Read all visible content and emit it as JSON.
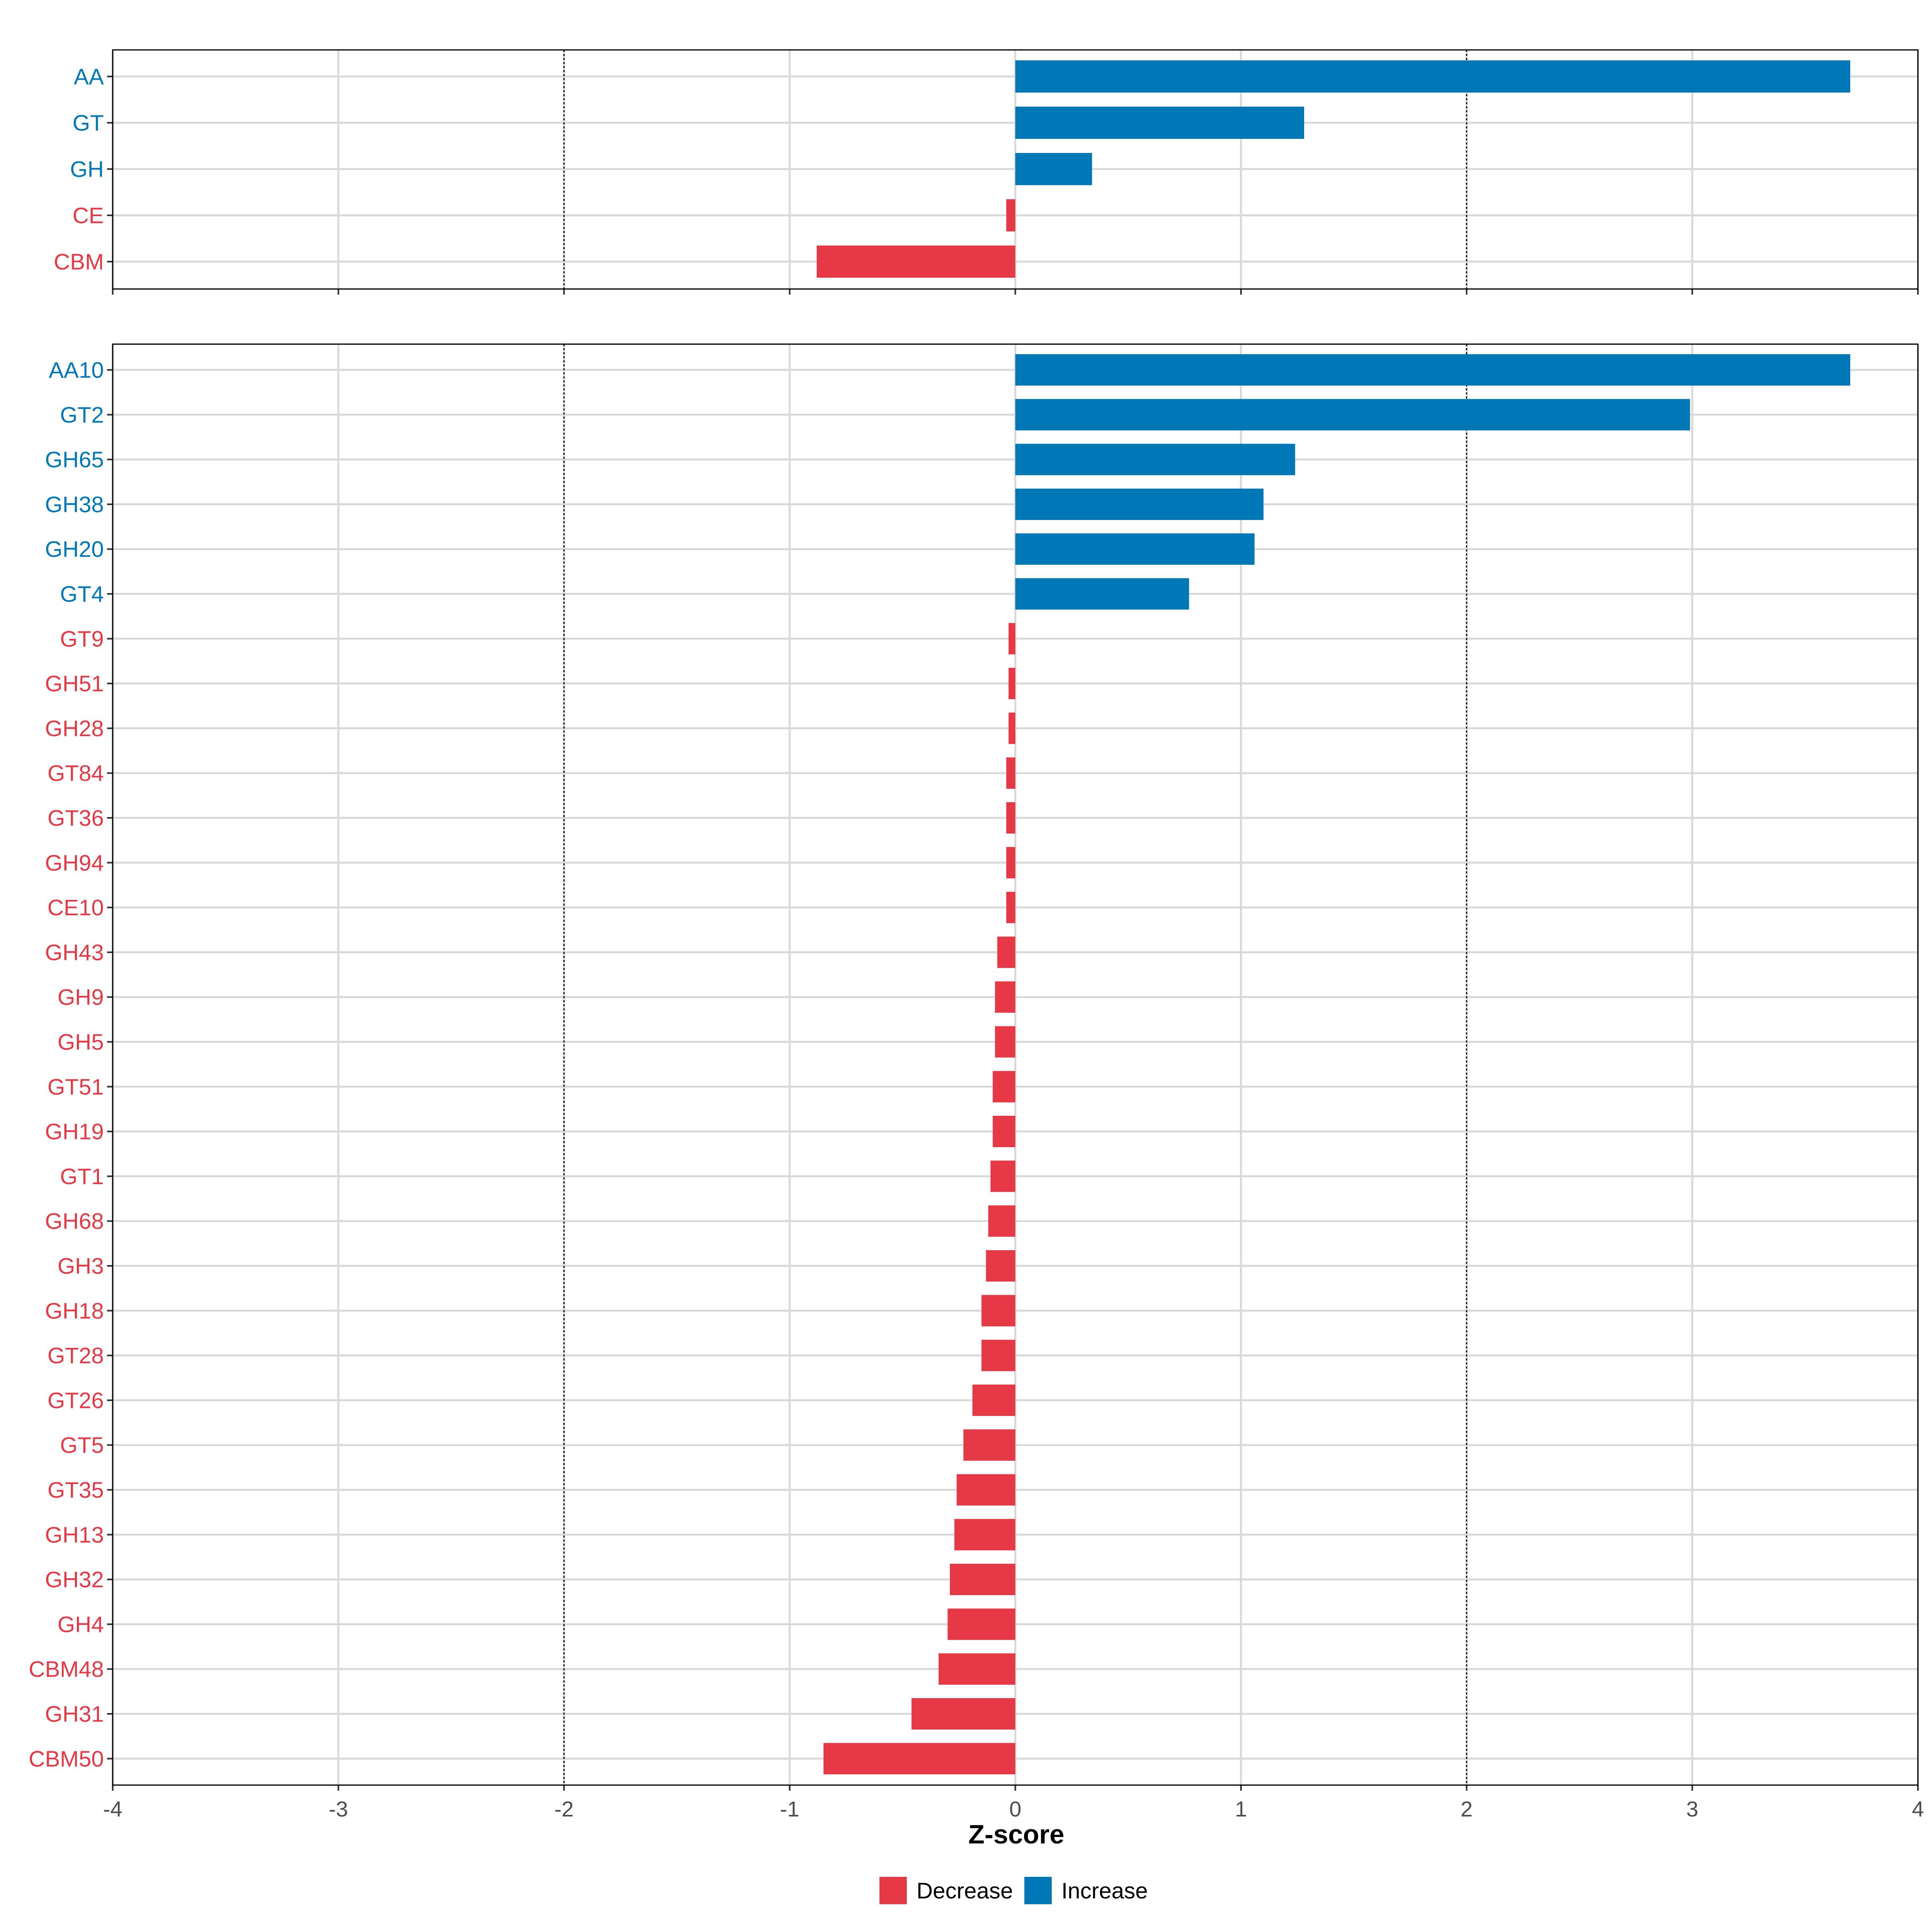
{
  "chart_data": [
    {
      "type": "bar",
      "orientation": "horizontal",
      "panel": "top",
      "categories": [
        "AA",
        "GT",
        "GH",
        "CE",
        "CBM"
      ],
      "values": [
        3.7,
        1.28,
        0.34,
        -0.04,
        -0.88
      ],
      "xlim": [
        -4,
        4
      ],
      "xticks": [
        -4,
        -3,
        -2,
        -1,
        0,
        1,
        2,
        3,
        4
      ],
      "reference_lines": [
        -2,
        2
      ],
      "show_x_tick_labels": false
    },
    {
      "type": "bar",
      "orientation": "horizontal",
      "panel": "bottom",
      "categories": [
        "AA10",
        "GT2",
        "GH65",
        "GH38",
        "GH20",
        "GT4",
        "GT9",
        "GH51",
        "GH28",
        "GT84",
        "GT36",
        "GH94",
        "CE10",
        "GH43",
        "GH9",
        "GH5",
        "GT51",
        "GH19",
        "GT1",
        "GH68",
        "GH3",
        "GH18",
        "GT28",
        "GT26",
        "GT5",
        "GT35",
        "GH13",
        "GH32",
        "GH4",
        "CBM48",
        "GH31",
        "CBM50"
      ],
      "values": [
        3.7,
        2.99,
        1.24,
        1.1,
        1.06,
        0.77,
        -0.03,
        -0.03,
        -0.03,
        -0.04,
        -0.04,
        -0.04,
        -0.04,
        -0.08,
        -0.09,
        -0.09,
        -0.1,
        -0.1,
        -0.11,
        -0.12,
        -0.13,
        -0.15,
        -0.15,
        -0.19,
        -0.23,
        -0.26,
        -0.27,
        -0.29,
        -0.3,
        -0.34,
        -0.46,
        -0.85
      ],
      "xlim": [
        -4,
        4
      ],
      "xticks": [
        -4,
        -3,
        -2,
        -1,
        0,
        1,
        2,
        3,
        4
      ],
      "reference_lines": [
        -2,
        2
      ],
      "show_x_tick_labels": true
    }
  ],
  "xlabel": "Z-score",
  "colors": {
    "increase": "#0077b6",
    "decrease": "#e63946",
    "grid": "#d9d9d9"
  },
  "legend": {
    "position": "bottom",
    "items": [
      {
        "label": "Decrease",
        "color": "#e63946"
      },
      {
        "label": "Increase",
        "color": "#0077b6"
      }
    ]
  }
}
